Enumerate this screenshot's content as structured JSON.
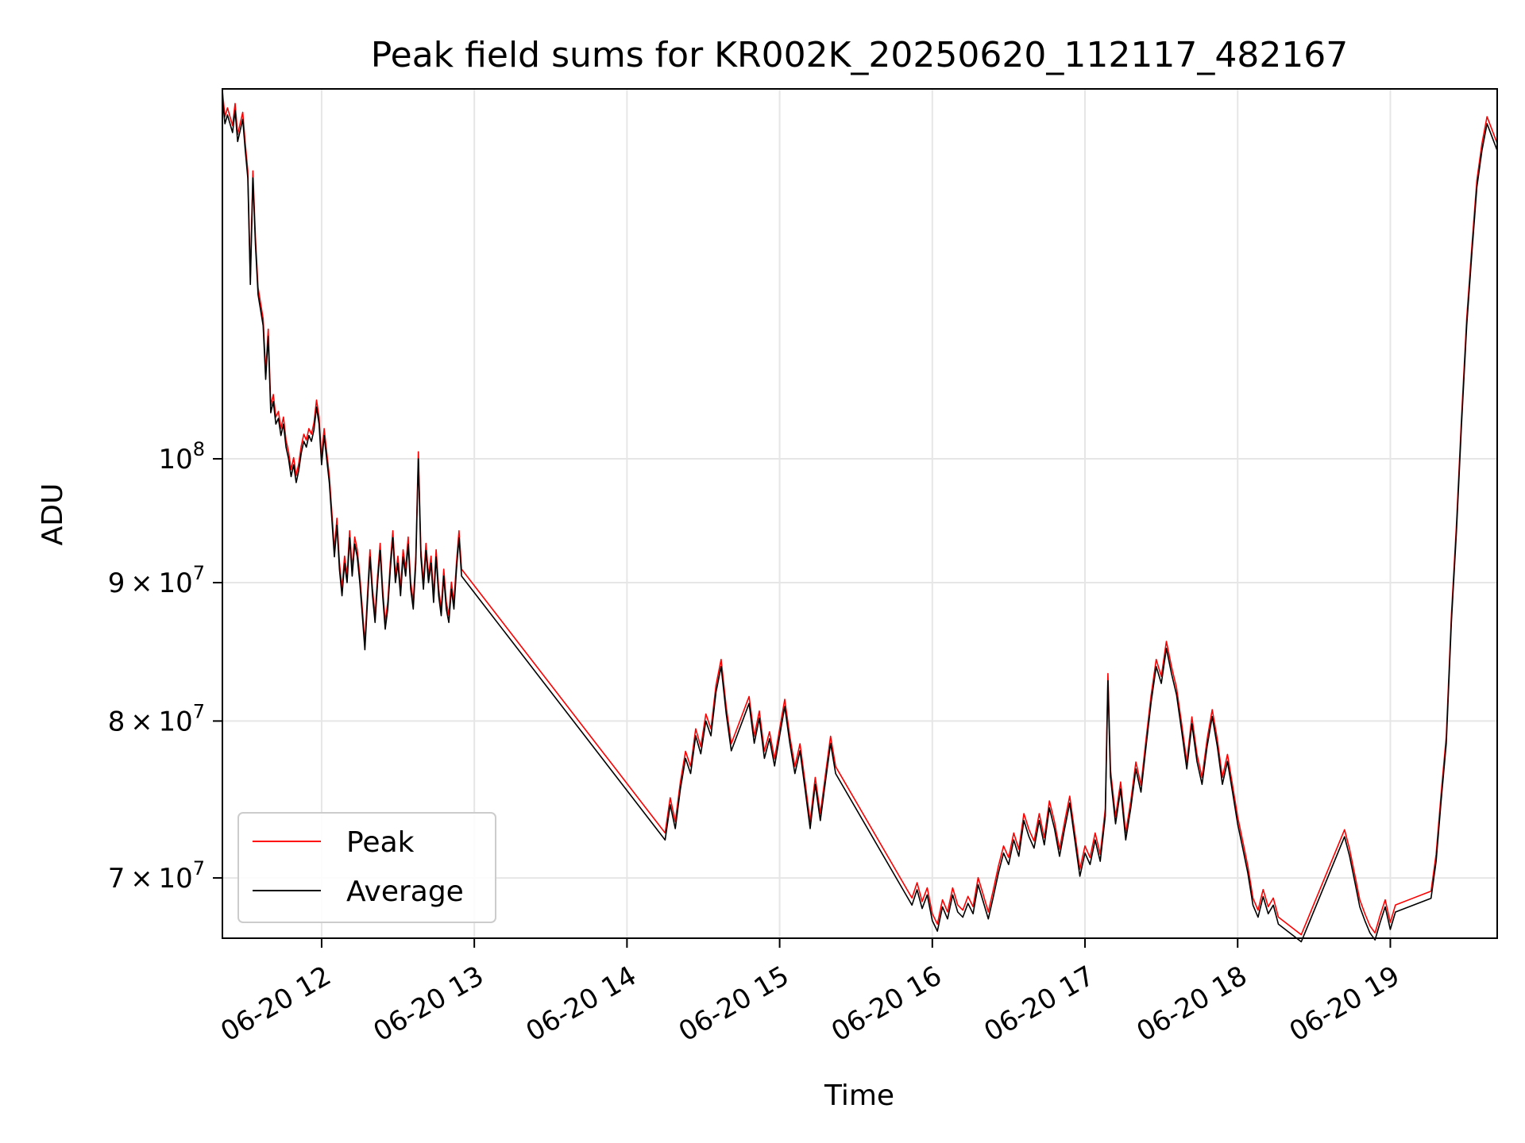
{
  "chart_data": {
    "type": "line",
    "title": "Peak field sums for KR002K_20250620_112117_482167",
    "xlabel": "Time",
    "ylabel": "ADU",
    "yscale": "log",
    "xlim": [
      "2025-06-20 11:21",
      "2025-06-20 19:42"
    ],
    "ylim": [
      66500000,
      137000000
    ],
    "grid": true,
    "legend_position": "lower-left",
    "x_ticks": [
      {
        "t": "2025-06-20 12:00",
        "label": "06-20 12"
      },
      {
        "t": "2025-06-20 13:00",
        "label": "06-20 13"
      },
      {
        "t": "2025-06-20 14:00",
        "label": "06-20 14"
      },
      {
        "t": "2025-06-20 15:00",
        "label": "06-20 15"
      },
      {
        "t": "2025-06-20 16:00",
        "label": "06-20 16"
      },
      {
        "t": "2025-06-20 17:00",
        "label": "06-20 17"
      },
      {
        "t": "2025-06-20 18:00",
        "label": "06-20 18"
      },
      {
        "t": "2025-06-20 19:00",
        "label": "06-20 19"
      }
    ],
    "y_ticks": [
      {
        "v": 70000000,
        "mant": "7",
        "exp": "7"
      },
      {
        "v": 80000000,
        "mant": "8",
        "exp": "7"
      },
      {
        "v": 90000000,
        "mant": "9",
        "exp": "7"
      },
      {
        "v": 100000000,
        "mant": "",
        "exp": "8"
      }
    ],
    "series": [
      {
        "name": "Peak",
        "color": "#ff0000",
        "offset": 1.006
      },
      {
        "name": "Average",
        "color": "#000000",
        "offset": 1.0
      }
    ],
    "average_values": [
      [
        "2025-06-20 11:21",
        136000000
      ],
      [
        "2025-06-20 11:22",
        133000000
      ],
      [
        "2025-06-20 11:23",
        134000000
      ],
      [
        "2025-06-20 11:25",
        132000000
      ],
      [
        "2025-06-20 11:26",
        134500000
      ],
      [
        "2025-06-20 11:27",
        131000000
      ],
      [
        "2025-06-20 11:29",
        133500000
      ],
      [
        "2025-06-20 11:30",
        130000000
      ],
      [
        "2025-06-20 11:31",
        127000000
      ],
      [
        "2025-06-20 11:32",
        116000000
      ],
      [
        "2025-06-20 11:33",
        127000000
      ],
      [
        "2025-06-20 11:34",
        120000000
      ],
      [
        "2025-06-20 11:35",
        115000000
      ],
      [
        "2025-06-20 11:37",
        112000000
      ],
      [
        "2025-06-20 11:38",
        107000000
      ],
      [
        "2025-06-20 11:39",
        111000000
      ],
      [
        "2025-06-20 11:40",
        104000000
      ],
      [
        "2025-06-20 11:41",
        105000000
      ],
      [
        "2025-06-20 11:42",
        103000000
      ],
      [
        "2025-06-20 11:43",
        103500000
      ],
      [
        "2025-06-20 11:44",
        102000000
      ],
      [
        "2025-06-20 11:45",
        103000000
      ],
      [
        "2025-06-20 11:46",
        101000000
      ],
      [
        "2025-06-20 11:47",
        100000000
      ],
      [
        "2025-06-20 11:48",
        98500000
      ],
      [
        "2025-06-20 11:49",
        99500000
      ],
      [
        "2025-06-20 11:50",
        98000000
      ],
      [
        "2025-06-20 11:51",
        99000000
      ],
      [
        "2025-06-20 11:52",
        100500000
      ],
      [
        "2025-06-20 11:53",
        101500000
      ],
      [
        "2025-06-20 11:54",
        101000000
      ],
      [
        "2025-06-20 11:55",
        102000000
      ],
      [
        "2025-06-20 11:56",
        101500000
      ],
      [
        "2025-06-20 11:57",
        102500000
      ],
      [
        "2025-06-20 11:58",
        104500000
      ],
      [
        "2025-06-20 11:59",
        103000000
      ],
      [
        "2025-06-20 12:00",
        99500000
      ],
      [
        "2025-06-20 12:01",
        102000000
      ],
      [
        "2025-06-20 12:02",
        100000000
      ],
      [
        "2025-06-20 12:03",
        98000000
      ],
      [
        "2025-06-20 12:04",
        95000000
      ],
      [
        "2025-06-20 12:05",
        92000000
      ],
      [
        "2025-06-20 12:06",
        94500000
      ],
      [
        "2025-06-20 12:07",
        91000000
      ],
      [
        "2025-06-20 12:08",
        89000000
      ],
      [
        "2025-06-20 12:09",
        91500000
      ],
      [
        "2025-06-20 12:10",
        90000000
      ],
      [
        "2025-06-20 12:11",
        93500000
      ],
      [
        "2025-06-20 12:12",
        90500000
      ],
      [
        "2025-06-20 12:13",
        93000000
      ],
      [
        "2025-06-20 12:14",
        92000000
      ],
      [
        "2025-06-20 12:15",
        90000000
      ],
      [
        "2025-06-20 12:16",
        87500000
      ],
      [
        "2025-06-20 12:17",
        85000000
      ],
      [
        "2025-06-20 12:18",
        88500000
      ],
      [
        "2025-06-20 12:19",
        92000000
      ],
      [
        "2025-06-20 12:20",
        89000000
      ],
      [
        "2025-06-20 12:21",
        87000000
      ],
      [
        "2025-06-20 12:22",
        90000000
      ],
      [
        "2025-06-20 12:23",
        92500000
      ],
      [
        "2025-06-20 12:24",
        89000000
      ],
      [
        "2025-06-20 12:25",
        86500000
      ],
      [
        "2025-06-20 12:26",
        88000000
      ],
      [
        "2025-06-20 12:27",
        91000000
      ],
      [
        "2025-06-20 12:28",
        93500000
      ],
      [
        "2025-06-20 12:29",
        90000000
      ],
      [
        "2025-06-20 12:30",
        91500000
      ],
      [
        "2025-06-20 12:31",
        89000000
      ],
      [
        "2025-06-20 12:32",
        92000000
      ],
      [
        "2025-06-20 12:33",
        90500000
      ],
      [
        "2025-06-20 12:34",
        93000000
      ],
      [
        "2025-06-20 12:35",
        89500000
      ],
      [
        "2025-06-20 12:36",
        88000000
      ],
      [
        "2025-06-20 12:37",
        91500000
      ],
      [
        "2025-06-20 12:38",
        100000000
      ],
      [
        "2025-06-20 12:39",
        92000000
      ],
      [
        "2025-06-20 12:40",
        89500000
      ],
      [
        "2025-06-20 12:41",
        92500000
      ],
      [
        "2025-06-20 12:42",
        90000000
      ],
      [
        "2025-06-20 12:43",
        91500000
      ],
      [
        "2025-06-20 12:44",
        88500000
      ],
      [
        "2025-06-20 12:45",
        92000000
      ],
      [
        "2025-06-20 12:46",
        89000000
      ],
      [
        "2025-06-20 12:47",
        87500000
      ],
      [
        "2025-06-20 12:48",
        90500000
      ],
      [
        "2025-06-20 12:49",
        88000000
      ],
      [
        "2025-06-20 12:50",
        87000000
      ],
      [
        "2025-06-20 12:51",
        89500000
      ],
      [
        "2025-06-20 12:52",
        88000000
      ],
      [
        "2025-06-20 12:53",
        91000000
      ],
      [
        "2025-06-20 12:54",
        93500000
      ],
      [
        "2025-06-20 12:55",
        90500000
      ],
      [
        "2025-06-20 14:15",
        72300000
      ],
      [
        "2025-06-20 14:17",
        74500000
      ],
      [
        "2025-06-20 14:19",
        73000000
      ],
      [
        "2025-06-20 14:21",
        75500000
      ],
      [
        "2025-06-20 14:23",
        77500000
      ],
      [
        "2025-06-20 14:25",
        76500000
      ],
      [
        "2025-06-20 14:27",
        79000000
      ],
      [
        "2025-06-20 14:29",
        77800000
      ],
      [
        "2025-06-20 14:31",
        80000000
      ],
      [
        "2025-06-20 14:33",
        79000000
      ],
      [
        "2025-06-20 14:35",
        82000000
      ],
      [
        "2025-06-20 14:37",
        83800000
      ],
      [
        "2025-06-20 14:39",
        80500000
      ],
      [
        "2025-06-20 14:41",
        78000000
      ],
      [
        "2025-06-20 14:48",
        81200000
      ],
      [
        "2025-06-20 14:50",
        78500000
      ],
      [
        "2025-06-20 14:52",
        80200000
      ],
      [
        "2025-06-20 14:54",
        77500000
      ],
      [
        "2025-06-20 14:56",
        78800000
      ],
      [
        "2025-06-20 14:58",
        77000000
      ],
      [
        "2025-06-20 15:00",
        79000000
      ],
      [
        "2025-06-20 15:02",
        81000000
      ],
      [
        "2025-06-20 15:04",
        78500000
      ],
      [
        "2025-06-20 15:06",
        76500000
      ],
      [
        "2025-06-20 15:08",
        78000000
      ],
      [
        "2025-06-20 15:10",
        75500000
      ],
      [
        "2025-06-20 15:12",
        73000000
      ],
      [
        "2025-06-20 15:14",
        75800000
      ],
      [
        "2025-06-20 15:16",
        73500000
      ],
      [
        "2025-06-20 15:18",
        76000000
      ],
      [
        "2025-06-20 15:20",
        78500000
      ],
      [
        "2025-06-20 15:22",
        76500000
      ],
      [
        "2025-06-20 15:52",
        68400000
      ],
      [
        "2025-06-20 15:54",
        69300000
      ],
      [
        "2025-06-20 15:56",
        68200000
      ],
      [
        "2025-06-20 15:58",
        69000000
      ],
      [
        "2025-06-20 16:00",
        67500000
      ],
      [
        "2025-06-20 16:02",
        66900000
      ],
      [
        "2025-06-20 16:04",
        68300000
      ],
      [
        "2025-06-20 16:06",
        67600000
      ],
      [
        "2025-06-20 16:08",
        69000000
      ],
      [
        "2025-06-20 16:10",
        68000000
      ],
      [
        "2025-06-20 16:12",
        67700000
      ],
      [
        "2025-06-20 16:14",
        68500000
      ],
      [
        "2025-06-20 16:16",
        67900000
      ],
      [
        "2025-06-20 16:18",
        69600000
      ],
      [
        "2025-06-20 16:20",
        68600000
      ],
      [
        "2025-06-20 16:22",
        67600000
      ],
      [
        "2025-06-20 16:24",
        68900000
      ],
      [
        "2025-06-20 16:26",
        70300000
      ],
      [
        "2025-06-20 16:28",
        71500000
      ],
      [
        "2025-06-20 16:30",
        70800000
      ],
      [
        "2025-06-20 16:32",
        72300000
      ],
      [
        "2025-06-20 16:34",
        71300000
      ],
      [
        "2025-06-20 16:36",
        73500000
      ],
      [
        "2025-06-20 16:38",
        72500000
      ],
      [
        "2025-06-20 16:40",
        71800000
      ],
      [
        "2025-06-20 16:42",
        73500000
      ],
      [
        "2025-06-20 16:44",
        72000000
      ],
      [
        "2025-06-20 16:46",
        74300000
      ],
      [
        "2025-06-20 16:48",
        73000000
      ],
      [
        "2025-06-20 16:50",
        71300000
      ],
      [
        "2025-06-20 16:52",
        73000000
      ],
      [
        "2025-06-20 16:54",
        74600000
      ],
      [
        "2025-06-20 16:56",
        72300000
      ],
      [
        "2025-06-20 16:58",
        70100000
      ],
      [
        "2025-06-20 17:00",
        71500000
      ],
      [
        "2025-06-20 17:02",
        70800000
      ],
      [
        "2025-06-20 17:04",
        72300000
      ],
      [
        "2025-06-20 17:06",
        71000000
      ],
      [
        "2025-06-20 17:08",
        73800000
      ],
      [
        "2025-06-20 17:09",
        82800000
      ],
      [
        "2025-06-20 17:10",
        76300000
      ],
      [
        "2025-06-20 17:12",
        73300000
      ],
      [
        "2025-06-20 17:14",
        75500000
      ],
      [
        "2025-06-20 17:16",
        72300000
      ],
      [
        "2025-06-20 17:18",
        74300000
      ],
      [
        "2025-06-20 17:20",
        76800000
      ],
      [
        "2025-06-20 17:22",
        75300000
      ],
      [
        "2025-06-20 17:24",
        78300000
      ],
      [
        "2025-06-20 17:26",
        81300000
      ],
      [
        "2025-06-20 17:28",
        83800000
      ],
      [
        "2025-06-20 17:30",
        82600000
      ],
      [
        "2025-06-20 17:32",
        85100000
      ],
      [
        "2025-06-20 17:34",
        83300000
      ],
      [
        "2025-06-20 17:36",
        81800000
      ],
      [
        "2025-06-20 17:38",
        79300000
      ],
      [
        "2025-06-20 17:40",
        76800000
      ],
      [
        "2025-06-20 17:42",
        79800000
      ],
      [
        "2025-06-20 17:44",
        77300000
      ],
      [
        "2025-06-20 17:46",
        75800000
      ],
      [
        "2025-06-20 17:48",
        78300000
      ],
      [
        "2025-06-20 17:50",
        80300000
      ],
      [
        "2025-06-20 17:52",
        78300000
      ],
      [
        "2025-06-20 17:54",
        75800000
      ],
      [
        "2025-06-20 17:56",
        77300000
      ],
      [
        "2025-06-20 17:58",
        75300000
      ],
      [
        "2025-06-20 18:00",
        73300000
      ],
      [
        "2025-06-20 18:02",
        71800000
      ],
      [
        "2025-06-20 18:04",
        70300000
      ],
      [
        "2025-06-20 18:06",
        68400000
      ],
      [
        "2025-06-20 18:08",
        67700000
      ],
      [
        "2025-06-20 18:10",
        68900000
      ],
      [
        "2025-06-20 18:12",
        67900000
      ],
      [
        "2025-06-20 18:14",
        68400000
      ],
      [
        "2025-06-20 18:16",
        67300000
      ],
      [
        "2025-06-20 18:25",
        66300000
      ],
      [
        "2025-06-20 18:42",
        72500000
      ],
      [
        "2025-06-20 18:44",
        71300000
      ],
      [
        "2025-06-20 18:46",
        69800000
      ],
      [
        "2025-06-20 18:48",
        68300000
      ],
      [
        "2025-06-20 18:50",
        67500000
      ],
      [
        "2025-06-20 18:52",
        66800000
      ],
      [
        "2025-06-20 18:54",
        66400000
      ],
      [
        "2025-06-20 18:56",
        67400000
      ],
      [
        "2025-06-20 18:58",
        68300000
      ],
      [
        "2025-06-20 19:00",
        67000000
      ],
      [
        "2025-06-20 19:02",
        68000000
      ],
      [
        "2025-06-20 19:16",
        68800000
      ],
      [
        "2025-06-20 19:18",
        71000000
      ],
      [
        "2025-06-20 19:20",
        74800000
      ],
      [
        "2025-06-20 19:22",
        78500000
      ],
      [
        "2025-06-20 19:24",
        87000000
      ],
      [
        "2025-06-20 19:26",
        94000000
      ],
      [
        "2025-06-20 19:28",
        103000000
      ],
      [
        "2025-06-20 19:30",
        112000000
      ],
      [
        "2025-06-20 19:32",
        119000000
      ],
      [
        "2025-06-20 19:34",
        126000000
      ],
      [
        "2025-06-20 19:36",
        130000000
      ],
      [
        "2025-06-20 19:38",
        133000000
      ],
      [
        "2025-06-20 19:40",
        131500000
      ],
      [
        "2025-06-20 19:42",
        130000000
      ]
    ]
  }
}
